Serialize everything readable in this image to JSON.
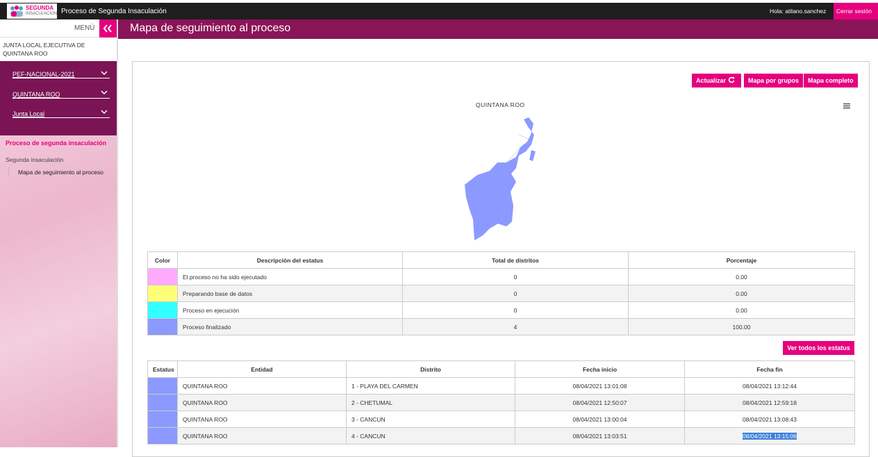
{
  "header": {
    "logo_top": "SEGUNDA",
    "logo_bottom": "INSACULACIÓN",
    "app_title": "Proceso de Segunda Insaculación",
    "user": "Hola: atilano.sanchez",
    "logout": "Cerrar sesión"
  },
  "sidebar": {
    "menu": "MENÚ",
    "location": "JUNTA LOCAL EJECUTIVA DE QUINTANA ROO",
    "selects": [
      "PEF-NACIONAL-2021",
      "QUINTANA ROO",
      "Junta Local"
    ],
    "section": "Proceso de segunda insaculación",
    "subsection": "Segunda insaculación",
    "item": "Mapa de seguimiento al proceso"
  },
  "page": {
    "title": "Mapa de seguimiento al proceso",
    "buttons": [
      "Actualizar",
      "Mapa por grupos",
      "Mapa completo"
    ],
    "map_title": "QUINTANA ROO",
    "status_button": "Ver todos los estatus"
  },
  "status_table": {
    "headers": [
      "Color",
      "Descripción del estatus",
      "Total de distritos",
      "Porcentaje"
    ],
    "rows": [
      {
        "color": "#ffaaff",
        "description": "El proceso no ha sido ejecutado",
        "total": 0,
        "percent": "0.00"
      },
      {
        "color": "#ffff77",
        "description": "Preparando base de datos",
        "total": 0,
        "percent": "0.00"
      },
      {
        "color": "#33ffff",
        "description": "Proceso en ejecución",
        "total": 0,
        "percent": "0.00"
      },
      {
        "color": "#8c99ff",
        "description": "Proceso finalizado",
        "total": 4,
        "percent": "100.00"
      }
    ]
  },
  "district_table": {
    "headers": [
      "Estatus",
      "Entidad",
      "Distrito",
      "Fecha inicio",
      "Fecha fin"
    ],
    "rows": [
      {
        "color": "#8c99ff",
        "entity": "QUINTANA ROO",
        "district": "1 - PLAYA DEL CARMEN",
        "start": "08/04/2021 13:01:08",
        "end": "08/04/2021 13:12:44"
      },
      {
        "color": "#8c99ff",
        "entity": "QUINTANA ROO",
        "district": "2 - CHETUMAL",
        "start": "08/04/2021 12:50:07",
        "end": "08/04/2021 12:59:18"
      },
      {
        "color": "#8c99ff",
        "entity": "QUINTANA ROO",
        "district": "3 - CANCUN",
        "start": "08/04/2021 13:00:04",
        "end": "08/04/2021 13:08:43"
      },
      {
        "color": "#8c99ff",
        "entity": "QUINTANA ROO",
        "district": "4 - CANCUN",
        "start": "08/04/2021 13:03:51",
        "end": "08/04/2021 13:15:06"
      }
    ]
  }
}
